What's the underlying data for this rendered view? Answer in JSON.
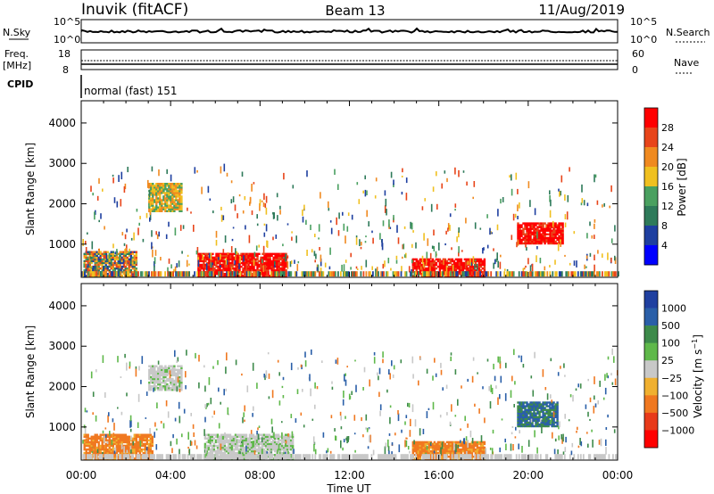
{
  "header": {
    "station": "Inuvik (fitACF)",
    "beam": "Beam 13",
    "date": "11/Aug/2019"
  },
  "panels": {
    "nsky": {
      "label": "N.Sky",
      "ticks_left": [
        "10^5",
        "10^0"
      ],
      "right_label": "N.Search",
      "ticks_right": [
        "10^5",
        "10^0"
      ]
    },
    "freq": {
      "label_line1": "Freq.",
      "label_line2": "[MHz]",
      "ticks_left": [
        "18",
        "8"
      ],
      "right_label": "Nave",
      "ticks_right": [
        "60",
        "0"
      ]
    },
    "cpid": {
      "label": "CPID",
      "text": "normal (fast) 151"
    }
  },
  "colors": {
    "power_scale": [
      "#0000ff",
      "#1e3fa0",
      "#2e7a5a",
      "#4aa060",
      "#f0c020",
      "#f08a20",
      "#e8451a",
      "#ff0000"
    ],
    "velocity_scale": [
      "#2040a0",
      "#2a5fa8",
      "#3d8a4a",
      "#5fb84a",
      "#c8c8c8",
      "#f0b030",
      "#f07820",
      "#e83a1a",
      "#ff0000"
    ]
  },
  "chart_data": [
    {
      "type": "heatmap",
      "title": "Power",
      "ylabel": "Slant Range [km]",
      "xlabel": "Time UT",
      "x_ticks": [
        "00:00",
        "04:00",
        "08:00",
        "12:00",
        "16:00",
        "20:00",
        "00:00"
      ],
      "y_ticks": [
        1000,
        2000,
        3000,
        4000
      ],
      "ylim": [
        180,
        4550
      ],
      "xlim_hours": [
        0,
        24
      ],
      "colorbar": {
        "label": "Power [dB]",
        "ticks": [
          4,
          8,
          12,
          16,
          20,
          24,
          28
        ]
      },
      "regions": [
        {
          "t0": 0.1,
          "t1": 2.5,
          "r0": 200,
          "r1": 800,
          "level": "mixed"
        },
        {
          "t0": 5.2,
          "t1": 9.2,
          "r0": 200,
          "r1": 750,
          "level": "high"
        },
        {
          "t0": 14.8,
          "t1": 18.0,
          "r0": 200,
          "r1": 650,
          "level": "high"
        },
        {
          "t0": 19.5,
          "t1": 21.5,
          "r0": 1000,
          "r1": 1500,
          "level": "high"
        },
        {
          "t0": 3.0,
          "t1": 4.5,
          "r0": 1800,
          "r1": 2500,
          "level": "medium"
        }
      ]
    },
    {
      "type": "heatmap",
      "title": "Velocity",
      "ylabel": "Slant Range [km]",
      "xlabel": "Time UT",
      "x_ticks": [
        "00:00",
        "04:00",
        "08:00",
        "12:00",
        "16:00",
        "20:00",
        "00:00"
      ],
      "y_ticks": [
        1000,
        2000,
        3000,
        4000
      ],
      "ylim": [
        180,
        4550
      ],
      "xlim_hours": [
        0,
        24
      ],
      "colorbar": {
        "label": "Velocity [m s^-1]",
        "ticks": [
          "1000",
          "500",
          "100",
          "25",
          "−25",
          "−100",
          "−500",
          "−1000"
        ]
      },
      "regions": [
        {
          "t0": 0.1,
          "t1": 3.2,
          "r0": 200,
          "r1": 800,
          "level": "negative"
        },
        {
          "t0": 5.5,
          "t1": 9.5,
          "r0": 200,
          "r1": 800,
          "level": "near-zero"
        },
        {
          "t0": 14.8,
          "t1": 18.0,
          "r0": 200,
          "r1": 650,
          "level": "negative"
        },
        {
          "t0": 19.5,
          "t1": 21.3,
          "r0": 1000,
          "r1": 1600,
          "level": "positive"
        },
        {
          "t0": 3.0,
          "t1": 4.5,
          "r0": 1900,
          "r1": 2500,
          "level": "near-zero"
        }
      ]
    }
  ]
}
